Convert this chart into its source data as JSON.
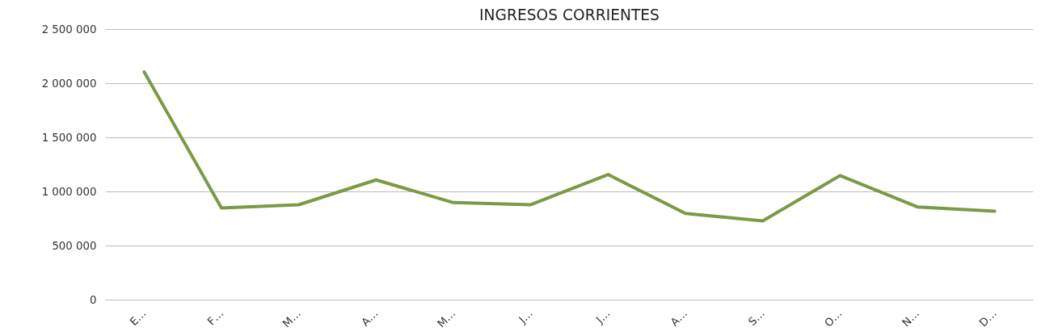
{
  "chart_data": {
    "type": "line",
    "title": "INGRESOS CORRIENTES",
    "categories": [
      "E…",
      "F…",
      "M…",
      "A…",
      "M…",
      "J…",
      "J…",
      "A…",
      "S…",
      "O…",
      "N…",
      "D…"
    ],
    "series": [
      {
        "color": "#7a9a45",
        "values": [
          2110000,
          850000,
          880000,
          1110000,
          900000,
          880000,
          1160000,
          800000,
          730000,
          1150000,
          860000,
          820000
        ]
      }
    ],
    "ylim": [
      0,
      2500000
    ],
    "yticks": [
      {
        "value": 0,
        "label": "0"
      },
      {
        "value": 500000,
        "label": "500 000"
      },
      {
        "value": 1000000,
        "label": "1 000 000"
      },
      {
        "value": 1500000,
        "label": "1 500 000"
      },
      {
        "value": 2000000,
        "label": "2 000 000"
      },
      {
        "value": 2500000,
        "label": "2 500 000"
      }
    ],
    "grid": "y",
    "marker": "none",
    "line_style": "solid"
  }
}
